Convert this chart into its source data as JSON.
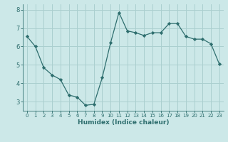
{
  "x": [
    0,
    1,
    2,
    3,
    4,
    5,
    6,
    7,
    8,
    9,
    10,
    11,
    12,
    13,
    14,
    15,
    16,
    17,
    18,
    19,
    20,
    21,
    22,
    23
  ],
  "y": [
    6.55,
    6.0,
    4.85,
    4.45,
    4.2,
    3.35,
    3.25,
    2.8,
    2.85,
    4.3,
    6.2,
    7.85,
    6.85,
    6.75,
    6.6,
    6.75,
    6.75,
    7.25,
    7.25,
    6.55,
    6.4,
    6.4,
    6.15,
    5.05
  ],
  "line_color": "#2e6e6e",
  "marker": "D",
  "marker_size": 2.2,
  "bg_color": "#cce8e8",
  "grid_color": "#aacfcf",
  "tick_color": "#2e6e6e",
  "xlabel": "Humidex (Indice chaleur)",
  "ylim": [
    2.5,
    8.3
  ],
  "xlim": [
    -0.5,
    23.5
  ],
  "yticks": [
    3,
    4,
    5,
    6,
    7,
    8
  ],
  "xticks": [
    0,
    1,
    2,
    3,
    4,
    5,
    6,
    7,
    8,
    9,
    10,
    11,
    12,
    13,
    14,
    15,
    16,
    17,
    18,
    19,
    20,
    21,
    22,
    23
  ]
}
